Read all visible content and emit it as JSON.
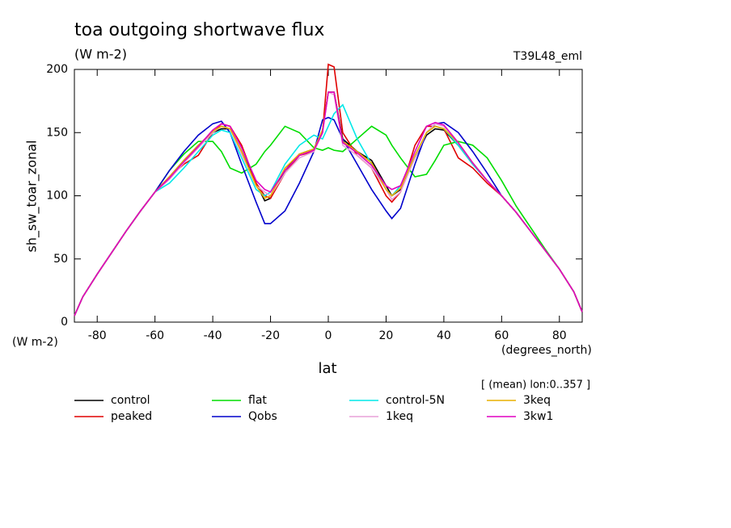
{
  "chart_data": {
    "type": "line",
    "title": "toa outgoing shortwave flux",
    "subtitle": "(W m-2)",
    "tag": "T39L48_eml",
    "y_label": "sh_sw_toar_zonal",
    "y_unit": "(W m-2)",
    "x_label": "lat",
    "x_unit": "(degrees_north)",
    "annotation": "[ (mean) lon:0..357 ]",
    "x": [
      -87.9,
      -85,
      -80,
      -75,
      -70,
      -65,
      -60,
      -55,
      -50,
      -45,
      -40,
      -37,
      -34,
      -30,
      -25,
      -22,
      -20,
      -15,
      -10,
      -5,
      -2,
      0,
      2,
      5,
      10,
      15,
      20,
      22,
      25,
      30,
      34,
      37,
      40,
      45,
      50,
      55,
      60,
      65,
      70,
      75,
      80,
      85,
      87.9
    ],
    "xlim": [
      -87.9,
      87.9
    ],
    "xticks": [
      -80,
      -60,
      -40,
      -20,
      0,
      20,
      40,
      60,
      80
    ],
    "ylim": [
      0,
      200
    ],
    "yticks": [
      0,
      50,
      100,
      150,
      200
    ],
    "series": [
      {
        "name": "control",
        "color": "#000000",
        "values": [
          5,
          20,
          38,
          55,
          72,
          88,
          103,
          115,
          128,
          140,
          150,
          153,
          153,
          135,
          110,
          96,
          98,
          120,
          133,
          137,
          152,
          182,
          182,
          145,
          135,
          128,
          108,
          100,
          105,
          130,
          148,
          153,
          152,
          140,
          125,
          112,
          100,
          87,
          72,
          57,
          42,
          24,
          8
        ]
      },
      {
        "name": "peaked",
        "color": "#e00000",
        "values": [
          5,
          20,
          38,
          55,
          72,
          88,
          103,
          115,
          125,
          132,
          150,
          157,
          155,
          140,
          110,
          100,
          98,
          118,
          132,
          135,
          150,
          204,
          202,
          150,
          132,
          122,
          100,
          95,
          103,
          140,
          155,
          155,
          153,
          130,
          122,
          110,
          100,
          87,
          72,
          57,
          42,
          24,
          8
        ]
      },
      {
        "name": "flat",
        "color": "#00dd00",
        "values": [
          5,
          20,
          38,
          55,
          72,
          88,
          103,
          120,
          133,
          143,
          143,
          135,
          122,
          118,
          125,
          135,
          140,
          155,
          150,
          138,
          136,
          138,
          136,
          135,
          145,
          155,
          148,
          140,
          130,
          115,
          117,
          128,
          140,
          143,
          140,
          130,
          112,
          92,
          75,
          58,
          42,
          24,
          8
        ]
      },
      {
        "name": "Qobs",
        "color": "#0000cc",
        "values": [
          5,
          20,
          38,
          55,
          72,
          88,
          103,
          120,
          135,
          148,
          157,
          159,
          150,
          125,
          95,
          78,
          78,
          88,
          110,
          135,
          160,
          162,
          160,
          145,
          125,
          105,
          88,
          82,
          90,
          125,
          150,
          157,
          158,
          150,
          135,
          118,
          100,
          87,
          72,
          57,
          42,
          24,
          8
        ]
      },
      {
        "name": "control-5N",
        "color": "#00e8e8",
        "values": [
          5,
          20,
          38,
          55,
          72,
          88,
          103,
          110,
          122,
          135,
          148,
          152,
          150,
          130,
          105,
          100,
          103,
          125,
          140,
          148,
          145,
          155,
          165,
          172,
          145,
          125,
          105,
          100,
          108,
          132,
          150,
          155,
          153,
          140,
          125,
          112,
          100,
          87,
          72,
          57,
          42,
          24,
          8
        ]
      },
      {
        "name": "1keq",
        "color": "#e8a0d8",
        "values": [
          5,
          20,
          38,
          55,
          72,
          88,
          103,
          113,
          126,
          138,
          150,
          155,
          153,
          133,
          108,
          103,
          100,
          118,
          130,
          135,
          150,
          182,
          180,
          140,
          132,
          122,
          105,
          97,
          103,
          130,
          150,
          157,
          155,
          142,
          126,
          112,
          100,
          87,
          72,
          57,
          42,
          24,
          8
        ]
      },
      {
        "name": "3keq",
        "color": "#e8b000",
        "values": [
          5,
          20,
          38,
          55,
          72,
          88,
          103,
          115,
          128,
          140,
          151,
          155,
          153,
          135,
          108,
          98,
          100,
          122,
          133,
          137,
          152,
          182,
          182,
          143,
          135,
          126,
          105,
          100,
          106,
          132,
          150,
          155,
          153,
          142,
          126,
          112,
          100,
          87,
          72,
          57,
          42,
          24,
          8
        ]
      },
      {
        "name": "3kw1",
        "color": "#e000c0",
        "values": [
          5,
          20,
          38,
          55,
          72,
          88,
          103,
          114,
          127,
          139,
          152,
          157,
          155,
          138,
          112,
          105,
          103,
          120,
          132,
          136,
          150,
          182,
          182,
          142,
          134,
          124,
          108,
          105,
          108,
          135,
          155,
          158,
          156,
          142,
          126,
          112,
          100,
          87,
          72,
          57,
          42,
          24,
          8
        ]
      }
    ]
  }
}
